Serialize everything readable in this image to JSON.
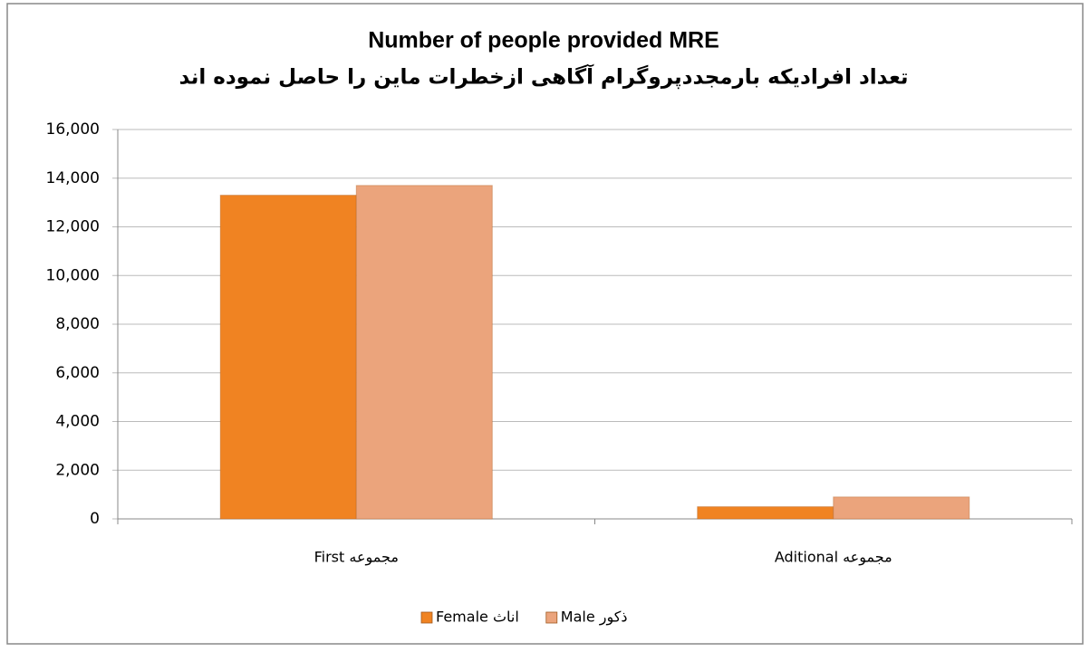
{
  "chart_data": {
    "type": "bar",
    "title": "Number of people provided MRE",
    "subtitle": "تعداد افرادیکه بارمجددپروگرام آگاهی ازخطرات ماین را حاصل نموده اند",
    "categories": [
      "First مجموعه",
      "Aditional مجموعه"
    ],
    "series": [
      {
        "name": "Female اناث",
        "color": "#f08322",
        "values": [
          13300,
          500
        ]
      },
      {
        "name": "Male ذکور",
        "color": "#eba47c",
        "values": [
          13700,
          900
        ]
      }
    ],
    "ylim": [
      0,
      16000
    ],
    "yticks": [
      0,
      {
        "value": 2000,
        "label": "2,000"
      },
      {
        "value": 4000,
        "label": "4,000"
      },
      {
        "value": 6000,
        "label": "6,000"
      },
      {
        "value": 8000,
        "label": "8,000"
      },
      {
        "value": 10000,
        "label": "10,000"
      },
      {
        "value": 12000,
        "label": "12,000"
      },
      {
        "value": 14000,
        "label": "14,000"
      },
      {
        "value": 16000,
        "label": "16,000"
      }
    ],
    "grid": true,
    "legend": "bottom"
  }
}
